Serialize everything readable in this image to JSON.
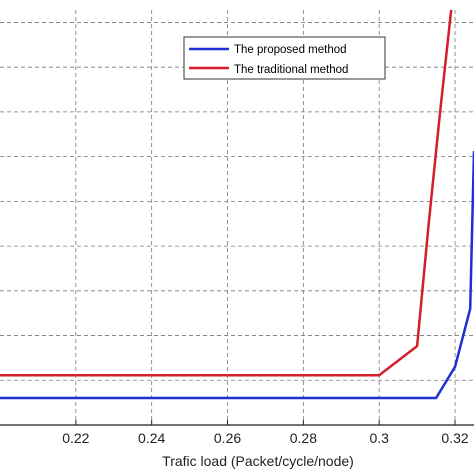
{
  "chart_data": {
    "type": "line",
    "xlabel": "Trafic load (Packet/cycle/node)",
    "x_ticks": [
      "0.22",
      "0.24",
      "0.26",
      "0.28",
      "0.3",
      "0.32"
    ],
    "xlim": [
      0.2,
      0.325
    ],
    "ylim": [
      0,
      100
    ],
    "grid": true,
    "legend_position": "top-right",
    "series": [
      {
        "name": "The proposed method",
        "color": "#1f2fd6",
        "points": [
          [
            0.2,
            6.5
          ],
          [
            0.315,
            6.5
          ],
          [
            0.32,
            14
          ],
          [
            0.324,
            28
          ],
          [
            0.325,
            66
          ]
        ]
      },
      {
        "name": "The traditional method",
        "color": "#d41f2a",
        "points": [
          [
            0.2,
            12
          ],
          [
            0.3,
            12
          ],
          [
            0.31,
            19
          ],
          [
            0.313,
            48
          ],
          [
            0.316,
            75
          ],
          [
            0.319,
            100
          ]
        ]
      }
    ]
  }
}
